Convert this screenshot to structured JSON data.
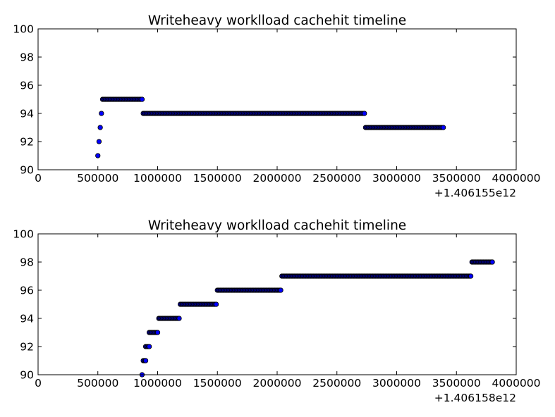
{
  "chart_data": [
    {
      "type": "scatter",
      "title": "Writeheavy worklload cachehit timeline",
      "xlabel": "",
      "ylabel": "",
      "xlim": [
        0,
        4000000
      ],
      "ylim": [
        90,
        100
      ],
      "xticks": [
        "0",
        "500000",
        "1000000",
        "1500000",
        "2000000",
        "2500000",
        "3000000",
        "3500000",
        "4000000"
      ],
      "yticks": [
        "90",
        "92",
        "94",
        "96",
        "98",
        "100"
      ],
      "x_offset_label": "+1.406155e12",
      "marker_color": "#0000ff",
      "grid": false,
      "series": [
        {
          "segments": [
            {
              "y": 91,
              "x_start": 500000,
              "x_end": 500000
            },
            {
              "y": 92,
              "x_start": 510000,
              "x_end": 510000
            },
            {
              "y": 93,
              "x_start": 520000,
              "x_end": 520000
            },
            {
              "y": 94,
              "x_start": 530000,
              "x_end": 530000
            },
            {
              "y": 95,
              "x_start": 540000,
              "x_end": 870000
            },
            {
              "y": 94,
              "x_start": 880000,
              "x_end": 2730000
            },
            {
              "y": 93,
              "x_start": 2740000,
              "x_end": 3390000
            }
          ]
        }
      ]
    },
    {
      "type": "scatter",
      "title": "Writeheavy worklload cachehit timeline",
      "xlabel": "",
      "ylabel": "",
      "xlim": [
        0,
        4000000
      ],
      "ylim": [
        90,
        100
      ],
      "xticks": [
        "0",
        "500000",
        "1000000",
        "1500000",
        "2000000",
        "2500000",
        "3000000",
        "3500000",
        "4000000"
      ],
      "yticks": [
        "90",
        "92",
        "94",
        "96",
        "98",
        "100"
      ],
      "x_offset_label": "+1.406158e12",
      "marker_color": "#0000ff",
      "grid": false,
      "series": [
        {
          "segments": [
            {
              "y": 90,
              "x_start": 870000,
              "x_end": 870000
            },
            {
              "y": 91,
              "x_start": 880000,
              "x_end": 900000
            },
            {
              "y": 92,
              "x_start": 900000,
              "x_end": 930000
            },
            {
              "y": 93,
              "x_start": 930000,
              "x_end": 1000000
            },
            {
              "y": 94,
              "x_start": 1010000,
              "x_end": 1180000
            },
            {
              "y": 95,
              "x_start": 1190000,
              "x_end": 1490000
            },
            {
              "y": 96,
              "x_start": 1500000,
              "x_end": 2030000
            },
            {
              "y": 97,
              "x_start": 2040000,
              "x_end": 3620000
            },
            {
              "y": 98,
              "x_start": 3630000,
              "x_end": 3800000
            }
          ]
        }
      ]
    }
  ]
}
